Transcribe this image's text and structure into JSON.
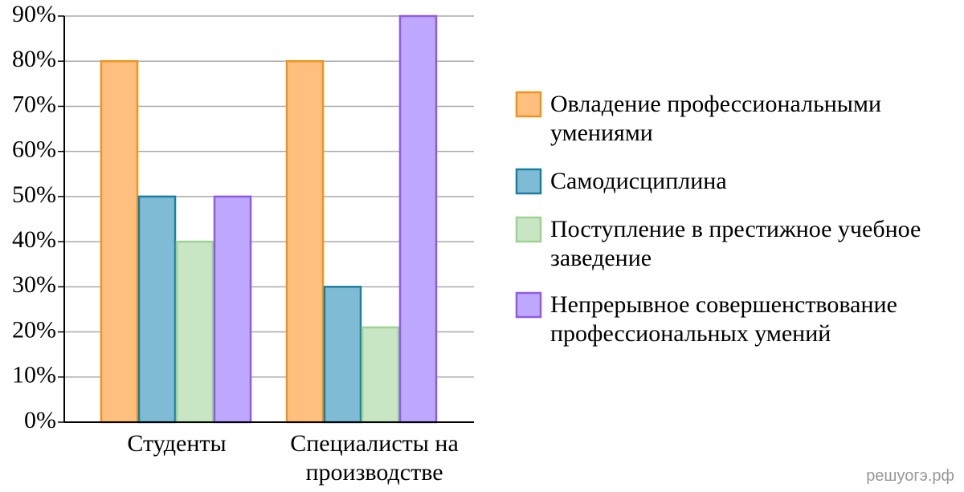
{
  "chart_data": {
    "type": "bar",
    "categories": [
      "Студенты",
      "Специалисты на производстве"
    ],
    "series": [
      {
        "name": "Овладение профессиональными умениями",
        "color": "#ffc07f",
        "values": [
          80,
          80
        ]
      },
      {
        "name": "Самодисциплина",
        "color": "#7fbbd4",
        "values": [
          50,
          30
        ]
      },
      {
        "name": "Поступление в престижное учебное заведение",
        "color": "#c8e6c4",
        "values": [
          40,
          21
        ]
      },
      {
        "name": "Непрерывное совершенствование профессиональных умений",
        "color": "#bfa8ff",
        "values": [
          50,
          90
        ]
      }
    ],
    "ylim": [
      0,
      90
    ],
    "yticks": [
      {
        "value": 0,
        "label": "0%"
      },
      {
        "value": 10,
        "label": "10%"
      },
      {
        "value": 20,
        "label": "20%"
      },
      {
        "value": 30,
        "label": "30%"
      },
      {
        "value": 40,
        "label": "40%"
      },
      {
        "value": 50,
        "label": "50%"
      },
      {
        "value": 60,
        "label": "60%"
      },
      {
        "value": 70,
        "label": "70%"
      },
      {
        "value": 80,
        "label": "80%"
      },
      {
        "value": 90,
        "label": "90%"
      }
    ],
    "grid": true,
    "legend": "right",
    "watermark": "решуогэ.рф"
  }
}
